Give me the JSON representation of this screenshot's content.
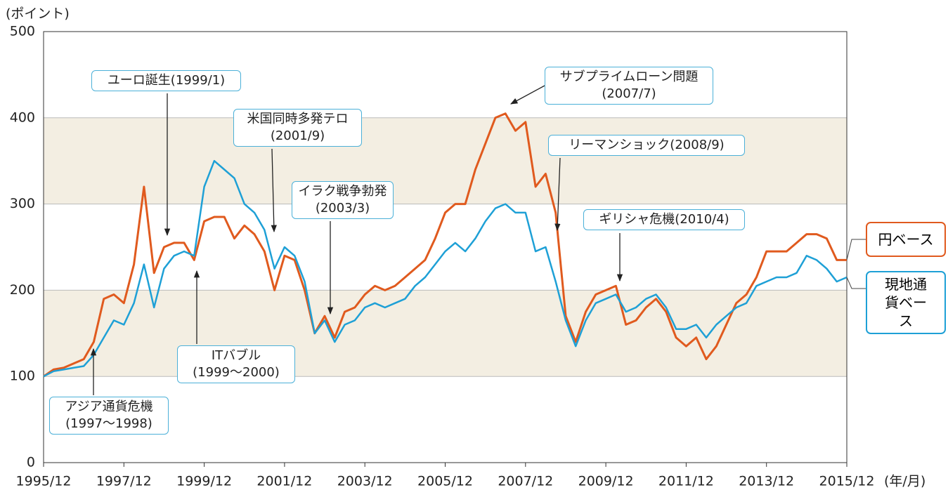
{
  "chart_data": {
    "type": "line",
    "y_label": "(ポイント)",
    "x_unit": "(年/月)",
    "x": [
      "1995/12",
      "1996/03",
      "1996/06",
      "1996/09",
      "1996/12",
      "1997/03",
      "1997/06",
      "1997/09",
      "1997/12",
      "1998/03",
      "1998/06",
      "1998/09",
      "1998/12",
      "1999/03",
      "1999/06",
      "1999/09",
      "1999/12",
      "2000/03",
      "2000/06",
      "2000/09",
      "2000/12",
      "2001/03",
      "2001/06",
      "2001/09",
      "2001/12",
      "2002/03",
      "2002/06",
      "2002/09",
      "2002/12",
      "2003/03",
      "2003/06",
      "2003/09",
      "2003/12",
      "2004/03",
      "2004/06",
      "2004/09",
      "2004/12",
      "2005/03",
      "2005/06",
      "2005/09",
      "2005/12",
      "2006/03",
      "2006/06",
      "2006/09",
      "2006/12",
      "2007/03",
      "2007/06",
      "2007/09",
      "2007/12",
      "2008/03",
      "2008/06",
      "2008/09",
      "2008/12",
      "2009/03",
      "2009/06",
      "2009/09",
      "2009/12",
      "2010/03",
      "2010/06",
      "2010/09",
      "2010/12",
      "2011/03",
      "2011/06",
      "2011/09",
      "2011/12",
      "2012/03",
      "2012/06",
      "2012/09",
      "2012/12",
      "2013/03",
      "2013/06",
      "2013/09",
      "2013/12",
      "2014/03",
      "2014/06",
      "2014/09",
      "2014/12",
      "2015/03",
      "2015/06",
      "2015/09",
      "2015/12"
    ],
    "series": [
      {
        "name": "円ベース",
        "color": "#e05a1e",
        "values": [
          100,
          108,
          110,
          115,
          120,
          140,
          190,
          195,
          185,
          230,
          320,
          220,
          250,
          255,
          255,
          235,
          280,
          285,
          285,
          260,
          275,
          265,
          245,
          200,
          240,
          235,
          200,
          150,
          170,
          145,
          175,
          180,
          195,
          205,
          200,
          205,
          215,
          225,
          235,
          260,
          290,
          300,
          300,
          340,
          370,
          400,
          405,
          385,
          395,
          320,
          335,
          290,
          170,
          140,
          175,
          195,
          200,
          205,
          160,
          165,
          180,
          190,
          175,
          145,
          135,
          145,
          120,
          135,
          160,
          185,
          195,
          215,
          245,
          245,
          245,
          255,
          265,
          265,
          260,
          235,
          235
        ]
      },
      {
        "name": "現地通貨ベース",
        "color": "#1ea0d6",
        "values": [
          100,
          106,
          108,
          110,
          112,
          125,
          145,
          165,
          160,
          185,
          230,
          180,
          225,
          240,
          245,
          240,
          320,
          350,
          340,
          330,
          300,
          290,
          270,
          225,
          250,
          240,
          210,
          150,
          165,
          140,
          160,
          165,
          180,
          185,
          180,
          185,
          190,
          205,
          215,
          230,
          245,
          255,
          245,
          260,
          280,
          295,
          300,
          290,
          290,
          245,
          250,
          210,
          165,
          135,
          165,
          185,
          190,
          195,
          175,
          180,
          190,
          195,
          180,
          155,
          155,
          160,
          145,
          160,
          170,
          180,
          185,
          205,
          210,
          215,
          215,
          220,
          240,
          235,
          225,
          210,
          215
        ]
      }
    ],
    "ylim": [
      0,
      500
    ],
    "yticks": [
      0,
      100,
      200,
      300,
      400,
      500
    ],
    "xticks": [
      "1995/12",
      "1997/12",
      "1999/12",
      "2001/12",
      "2003/12",
      "2005/12",
      "2007/12",
      "2009/12",
      "2011/12",
      "2013/12",
      "2015/12"
    ],
    "bands": [
      [
        100,
        200
      ],
      [
        300,
        400
      ]
    ],
    "band_color": "#f3eee2",
    "grid": true,
    "annotations": [
      {
        "text": [
          "ユーロ誕生(1999/1)"
        ]
      },
      {
        "text": [
          "米国同時多発テロ",
          "(2001/9)"
        ]
      },
      {
        "text": [
          "イラク戦争勃発",
          "(2003/3)"
        ]
      },
      {
        "text": [
          "サブプライムローン問題",
          "(2007/7)"
        ]
      },
      {
        "text": [
          "リーマンショック(2008/9)"
        ]
      },
      {
        "text": [
          "ギリシャ危機(2010/4)"
        ]
      },
      {
        "text": [
          "ITバブル",
          "(1999～2000)"
        ]
      },
      {
        "text": [
          "アジア通貨危機",
          "(1997～1998)"
        ]
      }
    ]
  }
}
